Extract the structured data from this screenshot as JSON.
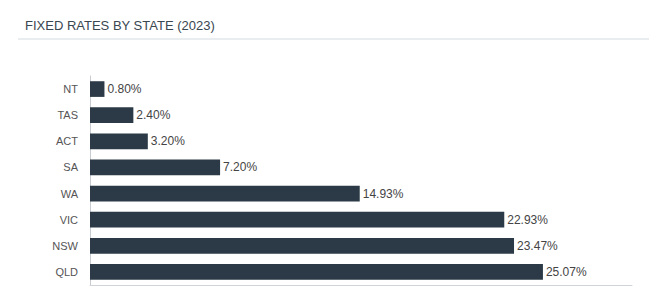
{
  "chart_data": {
    "type": "bar",
    "title": "FIXED RATES BY STATE (2023)",
    "orientation": "horizontal",
    "categories": [
      "NT",
      "TAS",
      "ACT",
      "SA",
      "WA",
      "VIC",
      "NSW",
      "QLD"
    ],
    "values": [
      0.8,
      2.4,
      3.2,
      7.2,
      14.93,
      22.93,
      23.47,
      25.07
    ],
    "value_labels": [
      "0.80%",
      "2.40%",
      "3.20%",
      "7.20%",
      "14.93%",
      "22.93%",
      "23.47%",
      "25.07%"
    ],
    "color": "#2b3a46",
    "xlim": [
      0,
      30
    ],
    "grid": false,
    "data_labels": true,
    "tick_labels": "y"
  }
}
